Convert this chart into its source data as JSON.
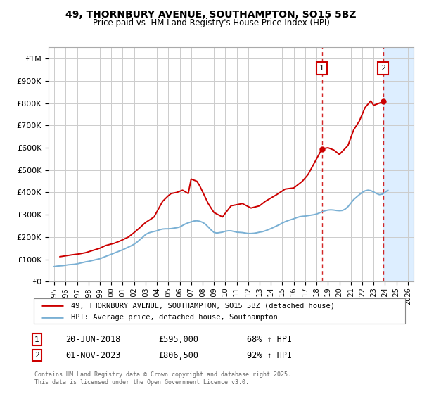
{
  "title": "49, THORNBURY AVENUE, SOUTHAMPTON, SO15 5BZ",
  "subtitle": "Price paid vs. HM Land Registry's House Price Index (HPI)",
  "ylim": [
    0,
    1050000
  ],
  "yticks": [
    0,
    100000,
    200000,
    300000,
    400000,
    500000,
    600000,
    700000,
    800000,
    900000,
    1000000
  ],
  "ytick_labels": [
    "£0",
    "£100K",
    "£200K",
    "£300K",
    "£400K",
    "£500K",
    "£600K",
    "£700K",
    "£800K",
    "£900K",
    "£1M"
  ],
  "xlim": [
    1994.5,
    2026.5
  ],
  "xticks": [
    1995,
    1996,
    1997,
    1998,
    1999,
    2000,
    2001,
    2002,
    2003,
    2004,
    2005,
    2006,
    2007,
    2008,
    2009,
    2010,
    2011,
    2012,
    2013,
    2014,
    2015,
    2016,
    2017,
    2018,
    2019,
    2020,
    2021,
    2022,
    2023,
    2024,
    2025,
    2026
  ],
  "house_color": "#cc0000",
  "hpi_color": "#7ab0d4",
  "marker1_year": 2018.47,
  "marker2_year": 2023.84,
  "marker1_price": 595000,
  "marker2_price": 806500,
  "legend_house": "49, THORNBURY AVENUE, SOUTHAMPTON, SO15 5BZ (detached house)",
  "legend_hpi": "HPI: Average price, detached house, Southampton",
  "label1_date": "20-JUN-2018",
  "label1_price": "£595,000",
  "label1_hpi": "68% ↑ HPI",
  "label2_date": "01-NOV-2023",
  "label2_price": "£806,500",
  "label2_hpi": "92% ↑ HPI",
  "footer": "Contains HM Land Registry data © Crown copyright and database right 2025.\nThis data is licensed under the Open Government Licence v3.0.",
  "background_color": "#ffffff",
  "plot_bg_color": "#ffffff",
  "shaded_region_color": "#ddeeff",
  "grid_color": "#cccccc",
  "hpi_years": [
    1995.0,
    1995.25,
    1995.5,
    1995.75,
    1996.0,
    1996.25,
    1996.5,
    1996.75,
    1997.0,
    1997.25,
    1997.5,
    1997.75,
    1998.0,
    1998.25,
    1998.5,
    1998.75,
    1999.0,
    1999.25,
    1999.5,
    1999.75,
    2000.0,
    2000.25,
    2000.5,
    2000.75,
    2001.0,
    2001.25,
    2001.5,
    2001.75,
    2002.0,
    2002.25,
    2002.5,
    2002.75,
    2003.0,
    2003.25,
    2003.5,
    2003.75,
    2004.0,
    2004.25,
    2004.5,
    2004.75,
    2005.0,
    2005.25,
    2005.5,
    2005.75,
    2006.0,
    2006.25,
    2006.5,
    2006.75,
    2007.0,
    2007.25,
    2007.5,
    2007.75,
    2008.0,
    2008.25,
    2008.5,
    2008.75,
    2009.0,
    2009.25,
    2009.5,
    2009.75,
    2010.0,
    2010.25,
    2010.5,
    2010.75,
    2011.0,
    2011.25,
    2011.5,
    2011.75,
    2012.0,
    2012.25,
    2012.5,
    2012.75,
    2013.0,
    2013.25,
    2013.5,
    2013.75,
    2014.0,
    2014.25,
    2014.5,
    2014.75,
    2015.0,
    2015.25,
    2015.5,
    2015.75,
    2016.0,
    2016.25,
    2016.5,
    2016.75,
    2017.0,
    2017.25,
    2017.5,
    2017.75,
    2018.0,
    2018.25,
    2018.5,
    2018.75,
    2019.0,
    2019.25,
    2019.5,
    2019.75,
    2020.0,
    2020.25,
    2020.5,
    2020.75,
    2021.0,
    2021.25,
    2021.5,
    2021.75,
    2022.0,
    2022.25,
    2022.5,
    2022.75,
    2023.0,
    2023.25,
    2023.5,
    2023.75,
    2024.0,
    2024.25
  ],
  "hpi_values": [
    68000,
    70000,
    71000,
    72000,
    74000,
    76000,
    77000,
    78000,
    80000,
    83000,
    86000,
    89000,
    91000,
    94000,
    97000,
    100000,
    103000,
    108000,
    113000,
    118000,
    123000,
    128000,
    133000,
    138000,
    143000,
    149000,
    155000,
    161000,
    168000,
    177000,
    188000,
    199000,
    211000,
    218000,
    222000,
    225000,
    228000,
    233000,
    236000,
    237000,
    237000,
    238000,
    240000,
    242000,
    245000,
    252000,
    259000,
    264000,
    268000,
    272000,
    273000,
    271000,
    266000,
    258000,
    245000,
    232000,
    221000,
    218000,
    220000,
    222000,
    226000,
    228000,
    228000,
    225000,
    222000,
    221000,
    220000,
    218000,
    216000,
    216000,
    217000,
    219000,
    222000,
    224000,
    228000,
    233000,
    238000,
    244000,
    250000,
    256000,
    263000,
    269000,
    274000,
    278000,
    282000,
    287000,
    291000,
    293000,
    294000,
    296000,
    298000,
    300000,
    303000,
    308000,
    314000,
    318000,
    321000,
    322000,
    321000,
    319000,
    318000,
    319000,
    325000,
    336000,
    352000,
    368000,
    379000,
    390000,
    400000,
    407000,
    410000,
    408000,
    402000,
    395000,
    390000,
    392000,
    400000,
    410000
  ],
  "house_years": [
    1995.5,
    1996.5,
    1997.25,
    1997.75,
    1998.25,
    1999.0,
    1999.5,
    2000.25,
    2000.75,
    2001.5,
    2002.0,
    2002.5,
    2003.0,
    2003.75,
    2004.5,
    2005.0,
    2005.25,
    2005.75,
    2006.25,
    2006.75,
    2007.0,
    2007.5,
    2007.75,
    2008.5,
    2009.0,
    2009.75,
    2010.5,
    2011.5,
    2012.25,
    2013.0,
    2013.5,
    2014.5,
    2015.25,
    2016.0,
    2016.5,
    2016.75,
    2017.25,
    2018.47,
    2019.0,
    2019.5,
    2020.0,
    2020.75,
    2021.25,
    2021.75,
    2022.25,
    2022.75,
    2023.0,
    2023.84
  ],
  "house_values": [
    112000,
    120000,
    125000,
    130000,
    138000,
    150000,
    162000,
    172000,
    182000,
    200000,
    220000,
    242000,
    265000,
    290000,
    360000,
    385000,
    395000,
    400000,
    410000,
    395000,
    460000,
    450000,
    430000,
    350000,
    310000,
    290000,
    340000,
    350000,
    330000,
    340000,
    360000,
    390000,
    415000,
    420000,
    440000,
    450000,
    480000,
    595000,
    600000,
    590000,
    570000,
    610000,
    680000,
    720000,
    780000,
    810000,
    790000,
    806500
  ]
}
